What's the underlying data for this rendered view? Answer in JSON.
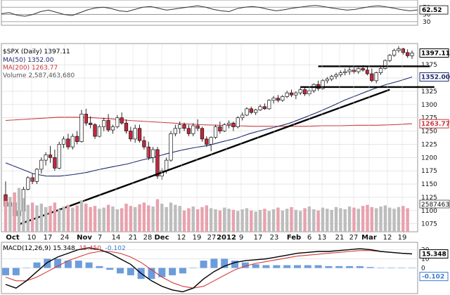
{
  "chart_data": {
    "type": "stock-chart",
    "rsi": {
      "levels": [
        70,
        50,
        30
      ],
      "last_value": 62.52,
      "values": [
        52,
        55,
        48,
        45,
        50,
        58,
        62,
        56,
        50,
        47,
        55,
        63,
        68,
        70,
        66,
        60,
        58,
        64,
        70,
        72,
        67,
        62,
        65,
        68,
        71,
        74,
        70,
        64,
        60,
        58,
        66,
        70,
        72,
        69,
        64,
        60,
        63,
        67,
        70,
        73,
        75,
        72,
        68,
        65,
        62,
        64,
        68,
        72,
        74,
        71,
        67,
        63,
        60,
        62.52
      ]
    },
    "price": {
      "title": "$SPX (Daily) 1397.11",
      "last": 1397.11,
      "y_ticks": [
        1075,
        1100,
        1125,
        1150,
        1175,
        1200,
        1225,
        1250,
        1275,
        1300,
        1325,
        1350,
        1375
      ],
      "ylim": [
        1060,
        1415
      ],
      "ma50": {
        "label": "MA(50) 1352.00",
        "last": 1352.0,
        "color": "#1f2a6e",
        "values": [
          1190,
          1180,
          1170,
          1165,
          1165,
          1168,
          1172,
          1178,
          1183,
          1188,
          1195,
          1201,
          1208,
          1214,
          1219,
          1223,
          1230,
          1236,
          1245,
          1252,
          1258,
          1265,
          1275,
          1285,
          1296,
          1308,
          1318,
          1328,
          1337,
          1344,
          1352
        ]
      },
      "ma200": {
        "label": "MA(200) 1263.77",
        "last": 1263.77,
        "color": "#c8383c",
        "values": [
          1270,
          1272,
          1274,
          1276,
          1276,
          1275,
          1273,
          1270,
          1268,
          1266,
          1264,
          1262,
          1261,
          1260,
          1259,
          1259,
          1259,
          1259,
          1260,
          1260,
          1261,
          1261,
          1262,
          1263.77
        ]
      },
      "candles": [
        [
          1130,
          1155,
          1110,
          1108
        ],
        [
          1108,
          1120,
          1098,
          1115
        ],
        [
          1115,
          1118,
          1085,
          1090
        ],
        [
          1090,
          1100,
          1074,
          1099
        ],
        [
          1099,
          1145,
          1095,
          1140
        ],
        [
          1140,
          1165,
          1138,
          1162
        ],
        [
          1162,
          1170,
          1150,
          1155
        ],
        [
          1155,
          1180,
          1150,
          1178
        ],
        [
          1178,
          1200,
          1170,
          1195
        ],
        [
          1195,
          1210,
          1185,
          1205
        ],
        [
          1205,
          1222,
          1190,
          1200
        ],
        [
          1200,
          1215,
          1175,
          1180
        ],
        [
          1180,
          1230,
          1178,
          1225
        ],
        [
          1225,
          1240,
          1218,
          1235
        ],
        [
          1235,
          1245,
          1215,
          1220
        ],
        [
          1220,
          1245,
          1215,
          1240
        ],
        [
          1240,
          1250,
          1225,
          1230
        ],
        [
          1230,
          1290,
          1228,
          1282
        ],
        [
          1282,
          1292,
          1260,
          1265
        ],
        [
          1265,
          1278,
          1255,
          1262
        ],
        [
          1262,
          1265,
          1235,
          1240
        ],
        [
          1240,
          1262,
          1238,
          1258
        ],
        [
          1258,
          1275,
          1250,
          1270
        ],
        [
          1270,
          1282,
          1248,
          1252
        ],
        [
          1252,
          1262,
          1245,
          1258
        ],
        [
          1258,
          1280,
          1255,
          1275
        ],
        [
          1275,
          1285,
          1262,
          1265
        ],
        [
          1265,
          1272,
          1245,
          1250
        ],
        [
          1250,
          1258,
          1230,
          1235
        ],
        [
          1235,
          1262,
          1228,
          1255
        ],
        [
          1255,
          1262,
          1228,
          1232
        ],
        [
          1232,
          1240,
          1215,
          1220
        ],
        [
          1220,
          1230,
          1195,
          1200
        ],
        [
          1200,
          1220,
          1190,
          1215
        ],
        [
          1215,
          1220,
          1160,
          1165
        ],
        [
          1165,
          1180,
          1158,
          1175
        ],
        [
          1175,
          1200,
          1170,
          1195
        ],
        [
          1195,
          1250,
          1192,
          1245
        ],
        [
          1245,
          1262,
          1240,
          1255
        ],
        [
          1255,
          1268,
          1245,
          1262
        ],
        [
          1262,
          1266,
          1250,
          1255
        ],
        [
          1255,
          1262,
          1240,
          1245
        ],
        [
          1245,
          1265,
          1240,
          1260
        ],
        [
          1260,
          1272,
          1250,
          1255
        ],
        [
          1255,
          1258,
          1230,
          1235
        ],
        [
          1235,
          1240,
          1220,
          1225
        ],
        [
          1225,
          1240,
          1212,
          1238
        ],
        [
          1238,
          1262,
          1235,
          1258
        ],
        [
          1258,
          1268,
          1245,
          1250
        ],
        [
          1250,
          1265,
          1248,
          1262
        ],
        [
          1262,
          1270,
          1255,
          1265
        ],
        [
          1265,
          1268,
          1250,
          1258
        ],
        [
          1258,
          1278,
          1255,
          1275
        ],
        [
          1275,
          1285,
          1270,
          1280
        ],
        [
          1280,
          1295,
          1278,
          1292
        ],
        [
          1292,
          1296,
          1282,
          1285
        ],
        [
          1285,
          1292,
          1280,
          1290
        ],
        [
          1290,
          1300,
          1288,
          1296
        ],
        [
          1296,
          1302,
          1290,
          1292
        ],
        [
          1292,
          1310,
          1290,
          1308
        ],
        [
          1308,
          1316,
          1302,
          1312
        ],
        [
          1312,
          1318,
          1304,
          1308
        ],
        [
          1308,
          1318,
          1305,
          1315
        ],
        [
          1315,
          1326,
          1312,
          1322
        ],
        [
          1322,
          1328,
          1314,
          1318
        ],
        [
          1318,
          1325,
          1310,
          1322
        ],
        [
          1322,
          1332,
          1318,
          1328
        ],
        [
          1328,
          1332,
          1316,
          1320
        ],
        [
          1320,
          1330,
          1316,
          1326
        ],
        [
          1326,
          1340,
          1322,
          1338
        ],
        [
          1338,
          1345,
          1326,
          1330
        ],
        [
          1330,
          1348,
          1328,
          1345
        ],
        [
          1345,
          1352,
          1340,
          1348
        ],
        [
          1348,
          1356,
          1344,
          1353
        ],
        [
          1353,
          1360,
          1348,
          1356
        ],
        [
          1356,
          1364,
          1352,
          1360
        ],
        [
          1360,
          1368,
          1355,
          1362
        ],
        [
          1362,
          1370,
          1356,
          1365
        ],
        [
          1365,
          1372,
          1358,
          1362
        ],
        [
          1362,
          1370,
          1358,
          1368
        ],
        [
          1368,
          1374,
          1362,
          1365
        ],
        [
          1365,
          1372,
          1355,
          1358
        ],
        [
          1358,
          1368,
          1342,
          1345
        ],
        [
          1345,
          1362,
          1340,
          1360
        ],
        [
          1360,
          1370,
          1356,
          1368
        ],
        [
          1368,
          1385,
          1366,
          1383
        ],
        [
          1383,
          1395,
          1380,
          1393
        ],
        [
          1393,
          1405,
          1390,
          1402
        ],
        [
          1402,
          1410,
          1398,
          1405
        ],
        [
          1405,
          1407,
          1394,
          1398
        ],
        [
          1398,
          1404,
          1388,
          1392
        ],
        [
          1392,
          1402,
          1386,
          1397.11
        ]
      ]
    },
    "volume": {
      "label": "Volume 2,587,463,680",
      "tag": "2587463",
      "values": [
        55,
        62,
        70,
        78,
        60,
        48,
        52,
        47,
        50,
        44,
        46,
        52,
        40,
        45,
        48,
        43,
        47,
        56,
        50,
        44,
        46,
        41,
        43,
        48,
        45,
        40,
        42,
        50,
        46,
        44,
        49,
        52,
        47,
        45,
        58,
        50,
        44,
        52,
        48,
        46,
        38,
        42,
        45,
        40,
        44,
        47,
        42,
        40,
        38,
        43,
        41,
        39,
        37,
        40,
        42,
        38,
        36,
        39,
        41,
        37,
        40,
        43,
        38,
        41,
        44,
        39,
        37,
        42,
        45,
        40,
        38,
        43,
        41,
        39,
        44,
        42,
        40,
        45,
        43,
        41,
        46,
        48,
        44,
        42,
        45,
        47,
        43,
        41,
        44,
        46,
        42
      ]
    },
    "x_ticks": [
      {
        "label": "Oct",
        "bold": true
      },
      {
        "label": "10"
      },
      {
        "label": "17"
      },
      {
        "label": "24"
      },
      {
        "label": "Nov",
        "bold": true
      },
      {
        "label": "7"
      },
      {
        "label": "14"
      },
      {
        "label": "21"
      },
      {
        "label": "28"
      },
      {
        "label": "Dec",
        "bold": true
      },
      {
        "label": "12"
      },
      {
        "label": "19"
      },
      {
        "label": "27"
      },
      {
        "label": "2012",
        "bold": true
      },
      {
        "label": "9"
      },
      {
        "label": "17"
      },
      {
        "label": "23"
      },
      {
        "label": "Feb",
        "bold": true
      },
      {
        "label": "6"
      },
      {
        "label": "13"
      },
      {
        "label": "21"
      },
      {
        "label": "27"
      },
      {
        "label": "Mar",
        "bold": true
      },
      {
        "label": "12"
      },
      {
        "label": "19"
      }
    ],
    "macd": {
      "label_prefix": "MACD(12,26,9)",
      "macd_value": "15.348",
      "signal_value": "15.450",
      "hist_value": "-0.102",
      "y_ticks": [
        20,
        10,
        0
      ],
      "ylim": [
        -28,
        28
      ],
      "macd_values": [
        -18,
        -22,
        -14,
        -4,
        6,
        12,
        16,
        20,
        22,
        20,
        16,
        10,
        4,
        -6,
        -14,
        -20,
        -24,
        -26,
        -22,
        -12,
        -4,
        2,
        6,
        8,
        9,
        10,
        12,
        14,
        16,
        17,
        18,
        18,
        19,
        20,
        21,
        20,
        18,
        17,
        16,
        15.348
      ],
      "signal_values": [
        -10,
        -14,
        -14,
        -10,
        -4,
        2,
        8,
        12,
        16,
        18,
        18,
        16,
        12,
        6,
        -2,
        -10,
        -16,
        -20,
        -22,
        -20,
        -14,
        -8,
        -2,
        2,
        5,
        7,
        9,
        11,
        13,
        14,
        15,
        16,
        17,
        18,
        19,
        19,
        18,
        17,
        16,
        15.45
      ],
      "histogram": [
        -8,
        -8,
        0,
        6,
        10,
        10,
        8,
        8,
        6,
        2,
        -2,
        -6,
        -8,
        -12,
        -12,
        -10,
        -8,
        -6,
        0,
        8,
        10,
        10,
        8,
        6,
        4,
        3,
        3,
        3,
        3,
        3,
        3,
        2,
        2,
        2,
        2,
        1,
        0,
        0,
        0,
        -0.102
      ]
    },
    "trendlines": {
      "support": {
        "from": [
          3,
          1074
        ],
        "to": [
          86,
          1328
        ]
      },
      "resistance": {
        "from": [
          70,
          1372
        ],
        "to": [
          95,
          1372
        ]
      },
      "lower": {
        "from": [
          66,
          1333
        ],
        "to": [
          96,
          1333
        ]
      }
    },
    "colors": {
      "up": "#ffffff",
      "down": "#c4263d",
      "grid": "#d8d8d8",
      "volume": "#bdbdbd",
      "volume_down": "#e8a2ad",
      "macd_line": "#000000",
      "signal_line": "#d23a3a",
      "hist": "#3b7bd0"
    }
  }
}
